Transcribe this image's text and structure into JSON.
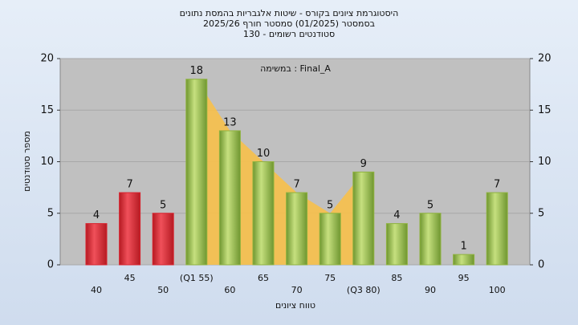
{
  "chart_data": {
    "type": "bar",
    "title": "היסטוגרמת ציונים בקורס - שיטות אלגבריות בהמסת נתונים",
    "subtitle": "בסמסטר  (01/2025)  סמסטר חורף  2025/26",
    "subtitle2": "סטודנטים רשומים - 130",
    "annotation": "במשימה : Final_A",
    "x_label": "טווח ציונים",
    "y_label": "מספר סטודנטים",
    "categories": [
      "40",
      "45",
      "50",
      "(Q1 55)",
      "60",
      "65",
      "70",
      "75",
      "(Q3 80)",
      "85",
      "90",
      "95",
      "100"
    ],
    "values": [
      4,
      7,
      5,
      18,
      13,
      10,
      7,
      5,
      9,
      4,
      5,
      1,
      7
    ],
    "colors": [
      "#d9232e",
      "#d9232e",
      "#d9232e",
      "#8fb33f",
      "#8fb33f",
      "#8fb33f",
      "#8fb33f",
      "#8fb33f",
      "#8fb33f",
      "#8fb33f",
      "#8fb33f",
      "#8fb33f",
      "#8fb33f"
    ],
    "ylim": [
      0,
      20
    ],
    "yticks": [
      0,
      5,
      10,
      15,
      20
    ],
    "y2lim": [
      0,
      20
    ],
    "y2ticks": [
      0,
      5,
      10,
      15,
      20
    ],
    "grid": true
  }
}
